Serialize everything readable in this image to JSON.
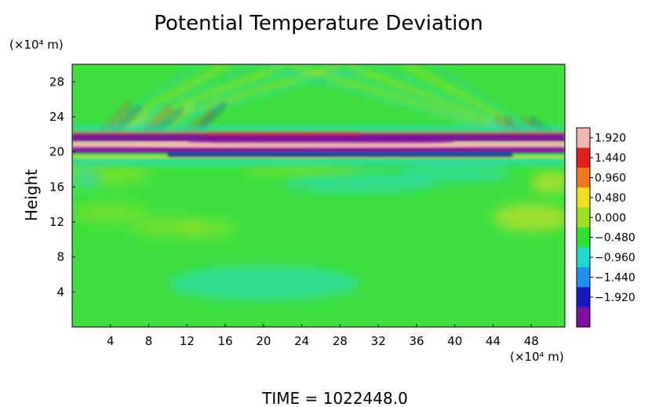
{
  "chart_data": {
    "type": "heatmap",
    "title": "Potential Temperature Deviation",
    "xlabel": "",
    "ylabel": "Height",
    "x_unit": "(×10⁴ m)",
    "y_unit": "(×10⁴ m)",
    "xlim": [
      0,
      51.5
    ],
    "ylim": [
      0,
      30
    ],
    "x_ticks": [
      4,
      8,
      12,
      16,
      20,
      24,
      28,
      32,
      36,
      40,
      44,
      48
    ],
    "y_ticks": [
      4,
      8,
      12,
      16,
      20,
      24,
      28
    ],
    "colorbar": {
      "levels": [
        1.92,
        1.44,
        0.96,
        0.48,
        0.0,
        -0.48,
        -0.96,
        -1.44,
        -1.92
      ],
      "labels": [
        "1.920",
        "1.440",
        "0.960",
        "0.480",
        "0.000",
        "−0.480",
        "−0.960",
        "−1.440",
        "−1.920"
      ],
      "colors": [
        "#f2b8b0",
        "#e02020",
        "#f07820",
        "#f0e020",
        "#98e020",
        "#30e030",
        "#20d8d0",
        "#2090f0",
        "#1818c0",
        "#8010a0"
      ],
      "background_color": "#40e040"
    },
    "footer": "TIME = 1022448.0"
  }
}
